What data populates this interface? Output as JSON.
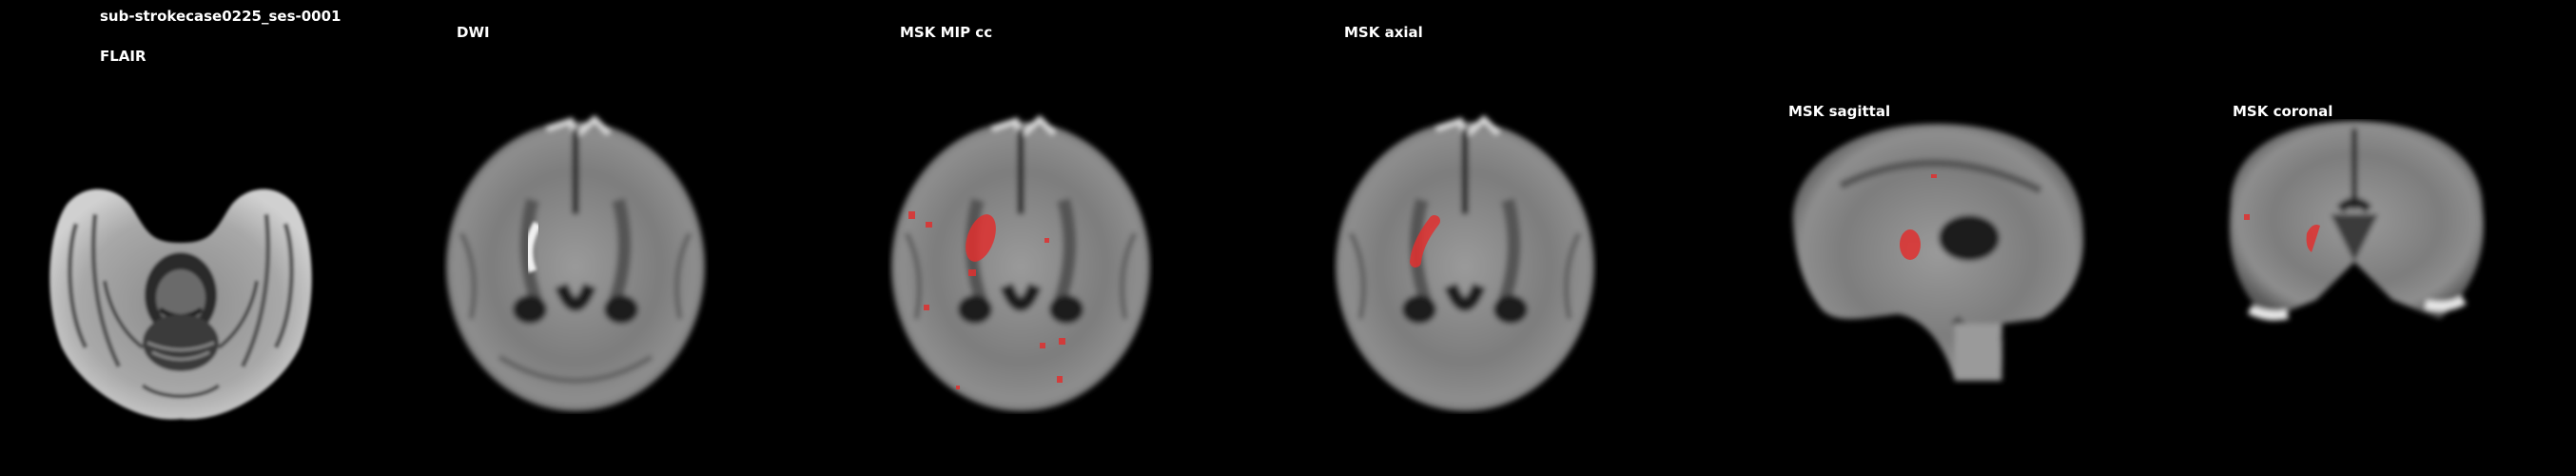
{
  "subject_id": "sub-strokecase0225_ses-0001",
  "panels": [
    {
      "title": "FLAIR"
    },
    {
      "title": "DWI"
    },
    {
      "title": "MSK MIP cc"
    },
    {
      "title": "MSK axial"
    },
    {
      "title": "MSK sagittal"
    },
    {
      "title": "MSK coronal"
    }
  ],
  "colors": {
    "background": "#000000",
    "label": "#ffffff",
    "mask": "#e0302f"
  }
}
